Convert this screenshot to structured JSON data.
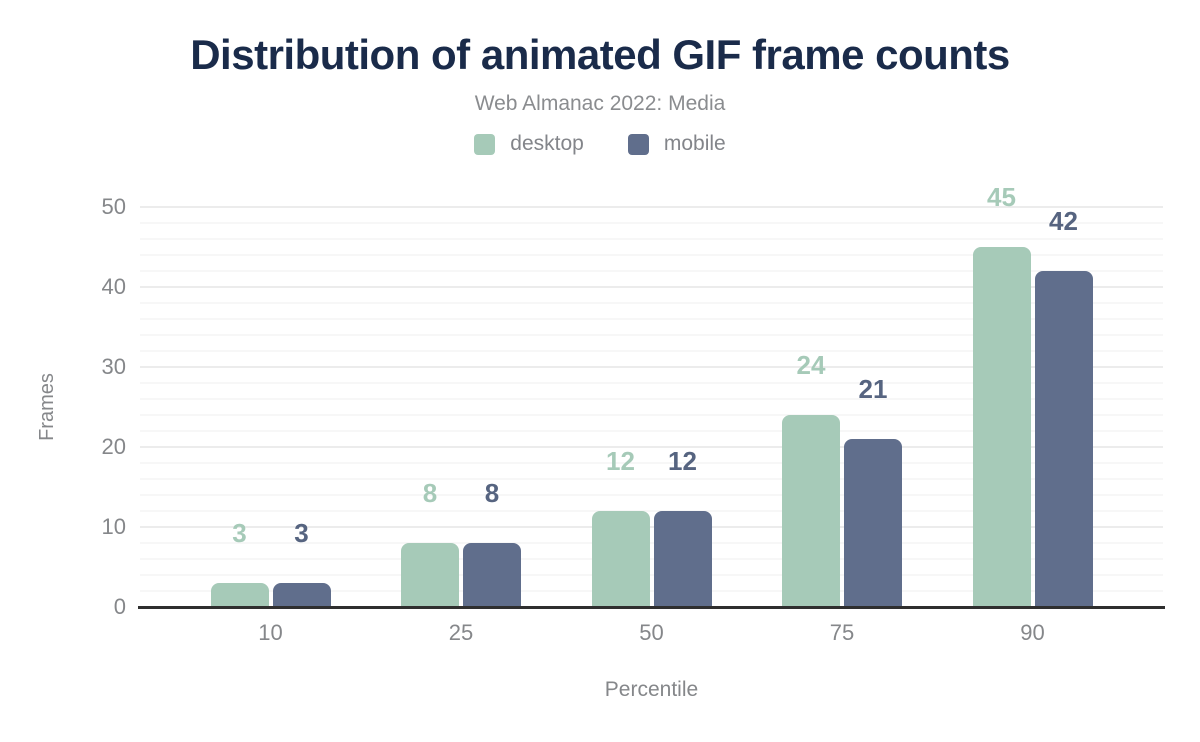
{
  "chart_data": {
    "type": "bar",
    "title": "Distribution of animated GIF frame counts",
    "subtitle": "Web Almanac 2022: Media",
    "xlabel": "Percentile",
    "ylabel": "Frames",
    "categories": [
      "10",
      "25",
      "50",
      "75",
      "90"
    ],
    "series": [
      {
        "name": "desktop",
        "color": "#a6cab8",
        "label_color": "#a6cab8",
        "values": [
          3,
          8,
          12,
          24,
          45
        ]
      },
      {
        "name": "mobile",
        "color": "#606e8c",
        "label_color": "#566480",
        "values": [
          3,
          8,
          12,
          21,
          42
        ]
      }
    ],
    "y_ticks": [
      0,
      10,
      20,
      30,
      40,
      50
    ],
    "ylim": [
      0,
      50
    ],
    "minor_grid_step": 2,
    "major_grid_step": 10,
    "grid": "on",
    "legend_position": "top",
    "data_labels": "above-bars",
    "colors": {
      "title": "#1a2b4a",
      "axis_text": "#85878a",
      "subtitle_text": "#8a8c8f",
      "axis_line": "#2f2f2f"
    }
  }
}
